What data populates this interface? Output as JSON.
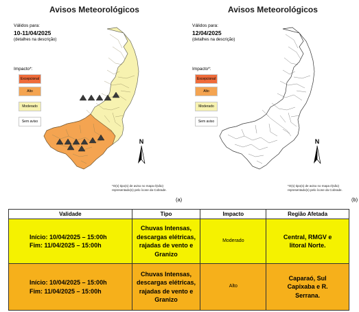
{
  "panels": [
    {
      "title": "Avisos Meteorológicos",
      "valid_label": "Válidos para:",
      "valid_date": "10-11/04/2025",
      "details": "(detalhes na descrição)",
      "impact_title": "Impacto*:",
      "legend": [
        "Excepcional",
        "Alto",
        "Moderado",
        "Sem aviso"
      ],
      "north": "N",
      "footnote": "*O(s) tipo(s) de aviso no mapa é(são) representado(s) pelo ícone da Cobrade.",
      "letter": "(a)"
    },
    {
      "title": "Avisos Meteorológicos",
      "valid_label": "Válidos para:",
      "valid_date": "12/04/2025",
      "details": "(detalhes na descrição)",
      "impact_title": "Impacto*:",
      "legend": [
        "Excepcional",
        "Alto",
        "Moderado",
        "Sem aviso"
      ],
      "north": "N",
      "footnote": "*O(s) tipo(s) de aviso no mapa é(são) representado(s) pelo ícone da Cobrade.",
      "letter": "(b)"
    }
  ],
  "table": {
    "headers": [
      "Validade",
      "Tipo",
      "Impacto",
      "Região Afetada"
    ],
    "rows": [
      {
        "validade": [
          "Início: 10/04/2025 – 15:00h",
          "Fim: 11/04/2025 – 15:00h"
        ],
        "tipo": [
          "Chuvas Intensas,",
          "descargas elétricas,",
          "rajadas de vento e",
          "Granizo"
        ],
        "impacto": "Moderado",
        "regiao": [
          "Central, RMGV e",
          "litoral Norte."
        ]
      },
      {
        "validade": [
          "Início: 10/04/2025 – 15:00h",
          "Fim: 11/04/2025 – 15:00h"
        ],
        "tipo": [
          "Chuvas Intensas,",
          "descargas elétricas,",
          "rajadas de vento e",
          "Granizo"
        ],
        "impacto": "Alto",
        "regiao": [
          "Caparaó, Sul",
          "Capixaba e R.",
          "Serrana."
        ]
      }
    ]
  },
  "colors": {
    "excepcional": "#ef6b3a",
    "alto": "#f4a451",
    "moderado": "#f7f2b0",
    "sem_aviso": "#ffffff",
    "row_moderado": "#f5f200",
    "row_alto": "#f6b01b"
  },
  "icons": [
    "warning-triangle-icon",
    "north-arrow-icon"
  ]
}
